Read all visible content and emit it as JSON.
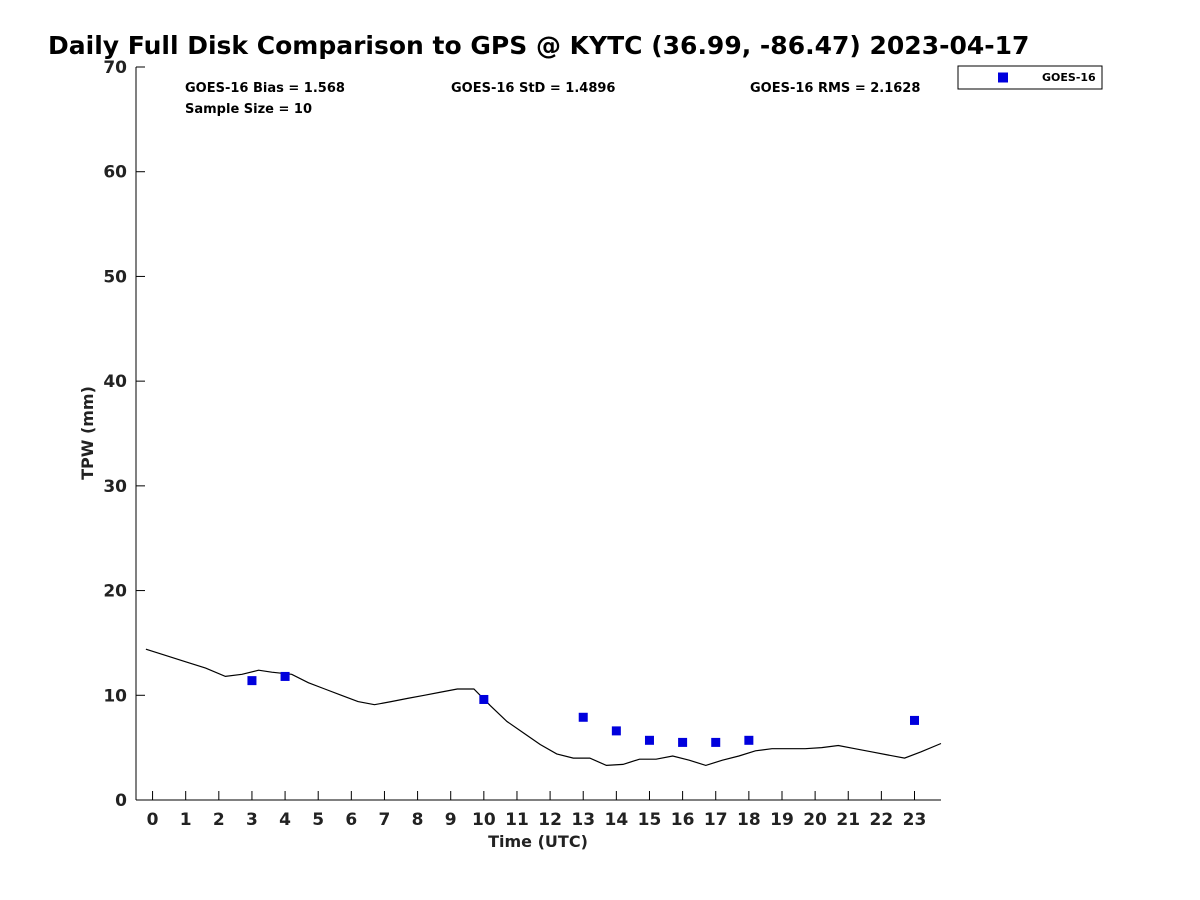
{
  "chart_data": {
    "type": "scatter",
    "title": "Daily Full Disk Comparison to GPS @ KYTC (36.99, -86.47) 2023-04-17",
    "xlabel": "Time (UTC)",
    "ylabel": "TPW (mm)",
    "xlim": [
      -0.5,
      23.8
    ],
    "ylim": [
      0,
      70
    ],
    "x_ticks": [
      0,
      1,
      2,
      3,
      4,
      5,
      6,
      7,
      8,
      9,
      10,
      11,
      12,
      13,
      14,
      15,
      16,
      17,
      18,
      19,
      20,
      21,
      22,
      23
    ],
    "y_ticks": [
      0,
      10,
      20,
      30,
      40,
      50,
      60,
      70
    ],
    "grid": false,
    "legend_position": "top-right, outside plot",
    "stats": {
      "bias": "GOES-16 Bias = 1.568",
      "std": "GOES-16 StD = 1.4896",
      "rms": "GOES-16 RMS = 2.1628",
      "sample": "Sample Size = 10"
    },
    "series": [
      {
        "name": "GOES-16",
        "kind": "scatter",
        "marker": "square",
        "color": "#0000dd",
        "x": [
          3,
          4,
          10,
          13,
          14,
          15,
          16,
          17,
          18,
          23
        ],
        "y": [
          11.4,
          11.8,
          9.6,
          7.9,
          6.6,
          5.7,
          5.5,
          5.5,
          5.7,
          7.6
        ]
      },
      {
        "kind": "line",
        "color": "#000000",
        "x": [
          -0.2,
          0.3,
          1.0,
          1.6,
          2.2,
          2.7,
          3.2,
          3.6,
          4.2,
          4.7,
          5.2,
          5.7,
          6.2,
          6.7,
          7.2,
          7.7,
          8.2,
          8.7,
          9.2,
          9.7,
          10.2,
          10.7,
          11.2,
          11.7,
          12.2,
          12.7,
          13.2,
          13.7,
          14.2,
          14.7,
          15.2,
          15.7,
          16.2,
          16.7,
          17.2,
          17.7,
          18.2,
          18.7,
          19.2,
          19.7,
          20.2,
          20.7,
          21.2,
          21.7,
          22.2,
          22.7,
          23.2,
          23.8
        ],
        "y": [
          14.4,
          13.9,
          13.2,
          12.6,
          11.8,
          12.0,
          12.4,
          12.2,
          12.0,
          11.2,
          10.6,
          10.0,
          9.4,
          9.1,
          9.4,
          9.7,
          10.0,
          10.3,
          10.6,
          10.6,
          9.0,
          7.5,
          6.4,
          5.3,
          4.4,
          4.0,
          4.0,
          3.3,
          3.4,
          3.9,
          3.9,
          4.2,
          3.8,
          3.3,
          3.8,
          4.2,
          4.7,
          4.9,
          4.9,
          4.9,
          5.0,
          5.2,
          4.9,
          4.6,
          4.3,
          4.0,
          4.6,
          5.4
        ]
      }
    ]
  }
}
